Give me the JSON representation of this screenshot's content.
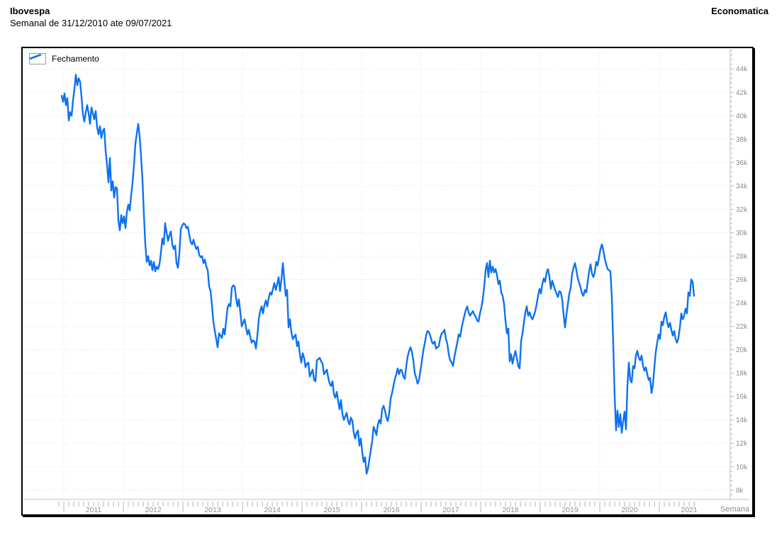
{
  "header": {
    "title": "Ibovespa",
    "subtitle": "Semanal de 31/12/2010 ate 09/07/2021",
    "brand": "Economatica"
  },
  "legend": {
    "label": "Fechamento"
  },
  "axes": {
    "x_label": "Semana",
    "y_unit_suffix": "k"
  },
  "colors": {
    "line": "#0e72ee",
    "grid": "#dcdcdc",
    "axis": "#c0c0c0",
    "tick": "#b4b4b4",
    "tick_text": "#8e8e8e",
    "border": "#000000"
  },
  "chart_data": {
    "type": "line",
    "title": "Ibovespa",
    "subtitle": "Semanal de 31/12/2010 ate 09/07/2021",
    "xlabel": "Semana",
    "ylabel": "",
    "grid": "dotted",
    "legend_position": "top-left",
    "x_range_axis": [
      2010.333,
      2022.19
    ],
    "y_range_axis": [
      7.2,
      45.65
    ],
    "x_ticks_years": [
      2011,
      2012,
      2013,
      2014,
      2015,
      2016,
      2017,
      2018,
      2019,
      2020,
      2021
    ],
    "x_minor_step": 0.0833333,
    "x_minor_start": 2010.917,
    "y_ticks": [
      8,
      10,
      12,
      14,
      16,
      18,
      20,
      22,
      24,
      26,
      28,
      30,
      32,
      34,
      36,
      38,
      40,
      42,
      44
    ],
    "y_minor_step": 0.4,
    "series": [
      {
        "name": "Fechamento",
        "color": "#0e72ee",
        "x_start": 2010.964,
        "x_step_years": 0.02381,
        "x_end": 2021.583,
        "unit": "thousands of points",
        "values": [
          41.7,
          41.2,
          41.9,
          40.9,
          41.5,
          39.6,
          40.3,
          40.0,
          41.3,
          42.3,
          43.5,
          42.6,
          43.2,
          42.9,
          41.6,
          40.1,
          39.5,
          40.3,
          40.9,
          40.2,
          39.3,
          40.7,
          40.2,
          39.7,
          40.4,
          39.0,
          38.4,
          39.1,
          38.1,
          38.7,
          38.9,
          37.0,
          35.8,
          34.3,
          36.4,
          33.6,
          34.4,
          33.0,
          33.9,
          33.8,
          31.0,
          30.2,
          31.5,
          30.8,
          31.4,
          30.4,
          31.8,
          32.4,
          31.9,
          33.2,
          34.3,
          35.8,
          37.6,
          38.5,
          39.3,
          38.2,
          36.5,
          34.5,
          31.5,
          29.0,
          27.5,
          28.0,
          27.2,
          27.6,
          26.8,
          27.5,
          26.7,
          27.1,
          26.9,
          27.3,
          28.3,
          29.5,
          29.0,
          30.8,
          30.0,
          29.3,
          29.8,
          30.1,
          29.0,
          28.6,
          28.9,
          27.4,
          27.0,
          28.2,
          30.3,
          30.6,
          30.8,
          30.7,
          30.4,
          30.5,
          29.8,
          29.2,
          29.0,
          29.4,
          28.9,
          28.6,
          28.8,
          28.1,
          27.9,
          28.0,
          27.4,
          27.7,
          27.1,
          26.8,
          25.4,
          25.0,
          23.8,
          22.4,
          21.6,
          20.9,
          20.2,
          21.4,
          21.2,
          21.0,
          21.8,
          21.3,
          22.5,
          23.6,
          23.9,
          23.7,
          25.3,
          25.5,
          25.4,
          24.4,
          23.7,
          24.3,
          23.2,
          22.0,
          22.3,
          22.6,
          21.9,
          21.3,
          21.7,
          21.1,
          20.6,
          20.8,
          20.7,
          20.1,
          21.2,
          22.6,
          23.3,
          23.7,
          23.1,
          23.8,
          24.2,
          23.7,
          24.4,
          24.9,
          24.7,
          25.2,
          25.7,
          25.1,
          25.6,
          26.2,
          25.0,
          26.0,
          27.4,
          26.0,
          24.6,
          25.1,
          21.9,
          22.6,
          21.5,
          20.9,
          21.1,
          21.3,
          20.3,
          20.7,
          19.6,
          18.9,
          19.7,
          19.3,
          18.5,
          18.8,
          18.9,
          17.7,
          18.0,
          18.3,
          17.4,
          17.3,
          19.1,
          19.2,
          19.3,
          19.0,
          18.8,
          17.9,
          18.1,
          18.3,
          17.6,
          17.1,
          16.9,
          17.3,
          16.2,
          15.9,
          16.4,
          15.6,
          14.9,
          15.7,
          14.5,
          14.0,
          14.3,
          14.6,
          13.9,
          13.6,
          14.2,
          13.9,
          12.9,
          12.4,
          12.9,
          13.1,
          11.8,
          12.4,
          11.2,
          10.4,
          10.8,
          9.4,
          9.8,
          10.6,
          11.4,
          12.2,
          13.4,
          13.1,
          12.7,
          13.6,
          14.0,
          13.7,
          14.9,
          15.2,
          14.8,
          14.2,
          13.9,
          14.6,
          15.8,
          16.3,
          16.9,
          17.5,
          17.9,
          18.4,
          17.9,
          18.3,
          18.2,
          17.7,
          17.5,
          18.6,
          19.4,
          19.9,
          20.2,
          19.8,
          19.1,
          18.0,
          17.6,
          17.1,
          17.4,
          18.2,
          19.0,
          19.9,
          20.5,
          21.2,
          21.6,
          21.5,
          21.2,
          20.7,
          20.5,
          20.7,
          20.1,
          20.2,
          20.3,
          21.0,
          21.4,
          21.5,
          21.7,
          20.9,
          20.5,
          19.6,
          19.1,
          18.9,
          18.6,
          19.4,
          20.0,
          20.6,
          21.3,
          21.1,
          21.8,
          22.4,
          22.9,
          23.4,
          23.7,
          23.2,
          22.9,
          23.1,
          23.3,
          23.0,
          22.8,
          22.5,
          22.4,
          23.1,
          23.6,
          24.3,
          25.4,
          26.8,
          27.4,
          26.2,
          27.6,
          26.6,
          27.1,
          26.6,
          26.9,
          26.4,
          25.6,
          25.9,
          24.9,
          24.6,
          23.9,
          22.5,
          21.4,
          21.8,
          19.0,
          19.6,
          18.8,
          19.4,
          19.9,
          19.3,
          18.6,
          18.4,
          20.7,
          21.4,
          22.3,
          23.2,
          23.7,
          22.9,
          23.2,
          22.8,
          22.6,
          22.9,
          23.3,
          23.9,
          24.6,
          25.2,
          24.8,
          25.6,
          26.1,
          25.8,
          26.6,
          26.9,
          26.2,
          25.2,
          25.9,
          25.5,
          25.1,
          24.8,
          24.5,
          25.0,
          24.9,
          24.3,
          23.0,
          21.9,
          23.0,
          23.9,
          24.8,
          25.3,
          26.5,
          27.0,
          27.4,
          26.8,
          26.1,
          25.7,
          25.3,
          24.8,
          24.6,
          25.1,
          24.9,
          25.8,
          26.7,
          27.3,
          26.5,
          26.2,
          26.6,
          27.5,
          27.2,
          27.9,
          28.6,
          29.0,
          28.5,
          27.8,
          27.3,
          26.9,
          26.8,
          26.7,
          24.5,
          20.5,
          16.0,
          13.1,
          14.8,
          13.4,
          14.5,
          12.9,
          13.9,
          14.7,
          13.2,
          16.9,
          18.9,
          17.4,
          17.2,
          18.6,
          18.4,
          19.5,
          19.9,
          19.3,
          19.1,
          19.5,
          18.6,
          18.2,
          18.5,
          17.9,
          17.4,
          17.6,
          16.3,
          17.0,
          18.5,
          19.8,
          20.6,
          21.3,
          20.9,
          22.4,
          22.1,
          22.8,
          23.2,
          22.4,
          21.9,
          22.3,
          21.7,
          21.2,
          21.6,
          20.9,
          20.6,
          21.0,
          21.9,
          23.1,
          22.6,
          22.9,
          23.5,
          23.1,
          24.9,
          24.6,
          26.0,
          25.8,
          24.6
        ]
      }
    ]
  }
}
